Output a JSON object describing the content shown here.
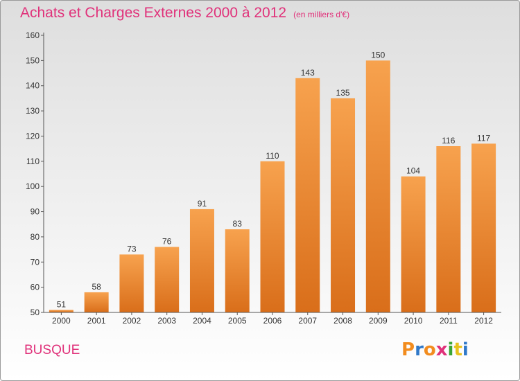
{
  "header": {
    "title": "Achats et Charges Externes 2000 à 2012",
    "subtitle": "(en milliers d'€)"
  },
  "footer": {
    "city": "BUSQUE",
    "logo_letters": [
      "P",
      "r",
      "o",
      "x",
      "i",
      "t",
      "i"
    ],
    "logo_colors": [
      "#f28c1e",
      "#2f78c8",
      "#f28c1e",
      "#e0317a",
      "#3aa535",
      "#e8c21c",
      "#2f78c8"
    ]
  },
  "colors": {
    "bar_top": "#f7a24e",
    "bar_bottom": "#d96e1a",
    "title": "#e0317a"
  },
  "chart_data": {
    "type": "bar",
    "categories": [
      "2000",
      "2001",
      "2002",
      "2003",
      "2004",
      "2005",
      "2006",
      "2007",
      "2008",
      "2009",
      "2010",
      "2011",
      "2012"
    ],
    "values": [
      51,
      58,
      73,
      76,
      91,
      83,
      110,
      143,
      135,
      150,
      104,
      116,
      117
    ],
    "ylim": [
      50,
      160
    ],
    "yticks": [
      50,
      60,
      70,
      80,
      90,
      100,
      110,
      120,
      130,
      140,
      150,
      160
    ],
    "grid": false,
    "legend": "none"
  }
}
